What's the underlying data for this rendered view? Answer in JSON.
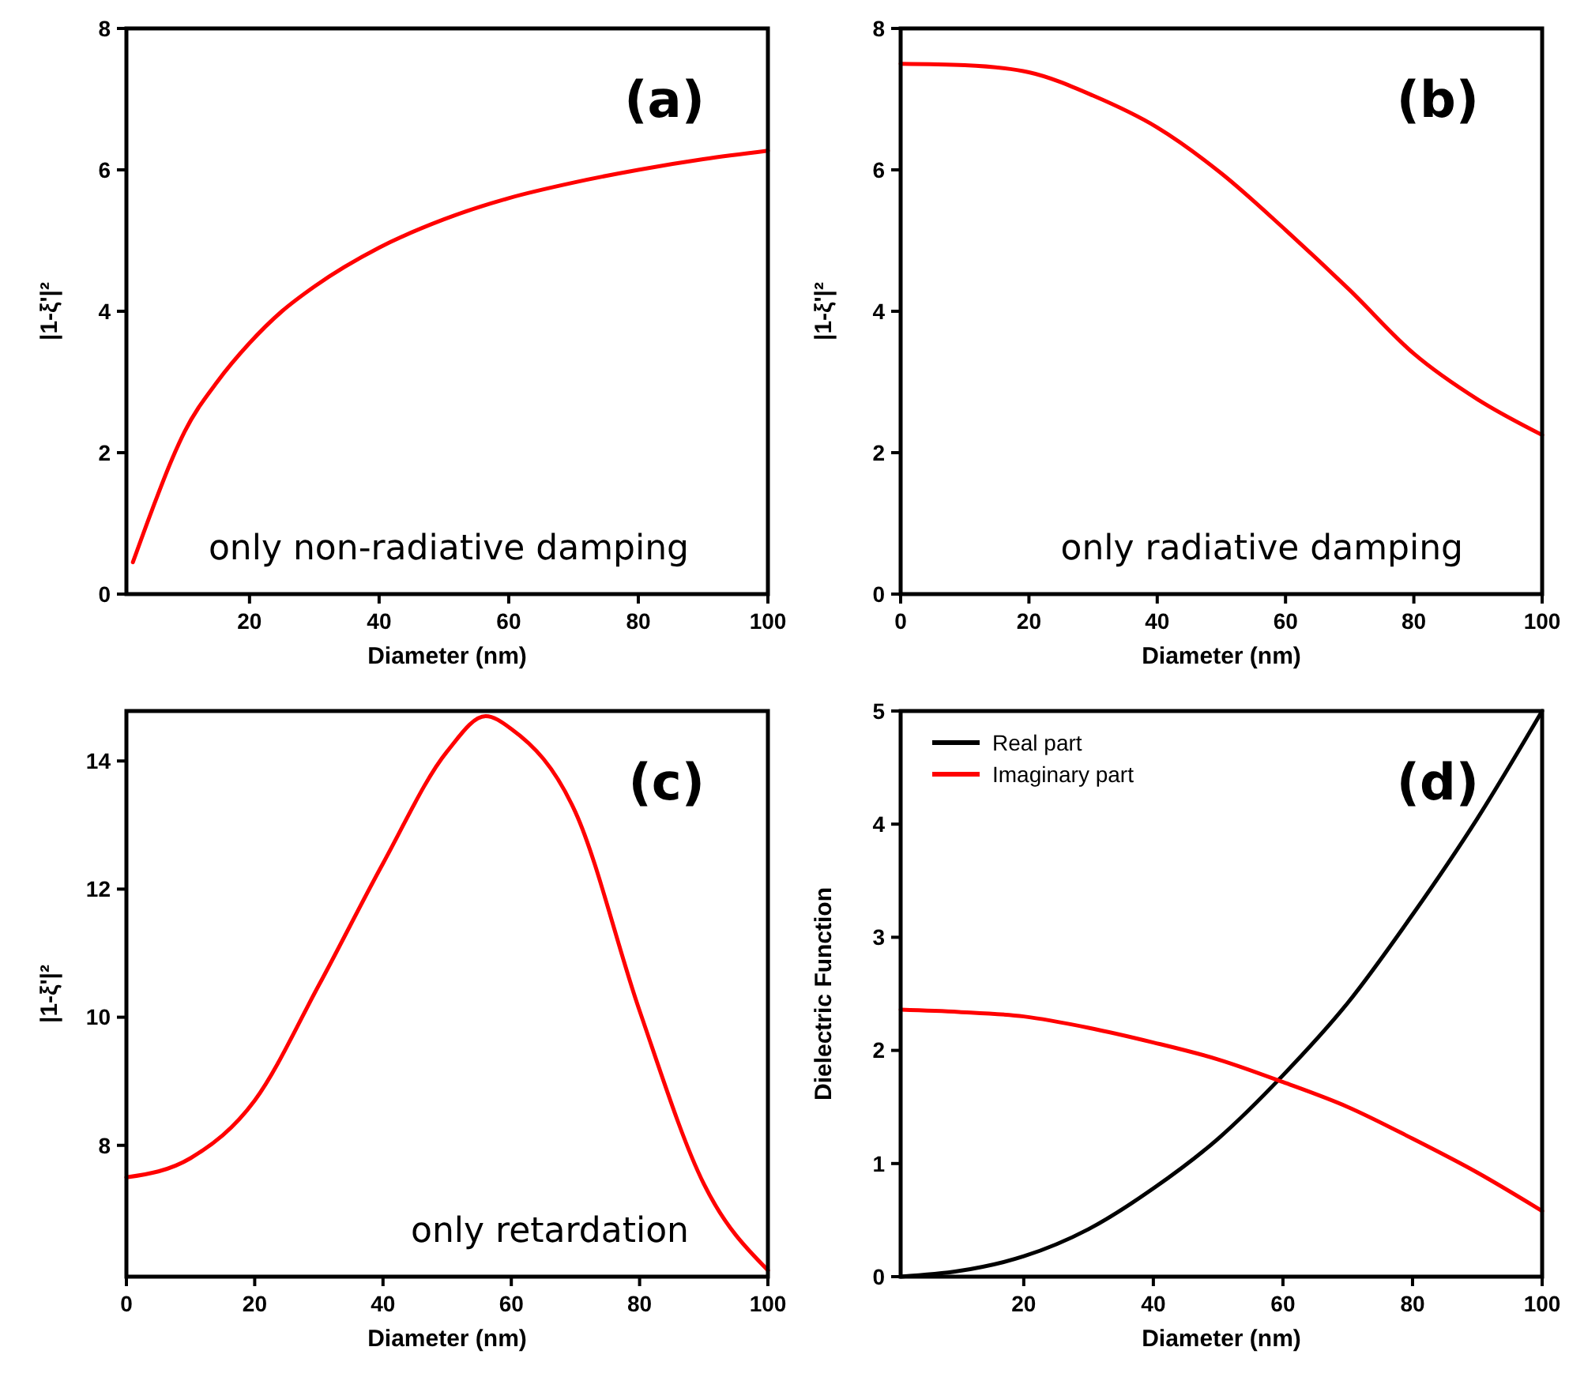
{
  "chart_data": [
    {
      "type": "line",
      "xlabel": "Diameter (nm)",
      "ylabel": "|1-ξ'|²",
      "xlim": [
        1,
        100
      ],
      "ylim": [
        0,
        8
      ],
      "xticks": [
        20,
        40,
        60,
        80,
        100
      ],
      "yticks": [
        0,
        2,
        4,
        6,
        8
      ],
      "annotations": [
        "(a)",
        "only non-radiative damping"
      ],
      "x": [
        2,
        5,
        8,
        10,
        15,
        20,
        25,
        30,
        40,
        50,
        60,
        70,
        80,
        90,
        100
      ],
      "series": [
        {
          "color": "#ff0000",
          "values": [
            0.45,
            1.2,
            1.9,
            2.3,
            3.0,
            3.55,
            4.0,
            4.35,
            4.9,
            5.3,
            5.6,
            5.82,
            6.0,
            6.15,
            6.27
          ]
        }
      ]
    },
    {
      "type": "line",
      "xlabel": "Diameter (nm)",
      "ylabel": "|1-ξ'|²",
      "xlim": [
        0,
        100
      ],
      "ylim": [
        0,
        8
      ],
      "xticks": [
        0,
        20,
        40,
        60,
        80,
        100
      ],
      "yticks": [
        0,
        2,
        4,
        6,
        8
      ],
      "annotations": [
        "(b)",
        "only radiative damping"
      ],
      "x": [
        0,
        10,
        20,
        30,
        40,
        50,
        60,
        70,
        80,
        90,
        100
      ],
      "series": [
        {
          "color": "#ff0000",
          "values": [
            7.5,
            7.48,
            7.38,
            7.05,
            6.6,
            5.95,
            5.15,
            4.3,
            3.4,
            2.75,
            2.25
          ]
        }
      ]
    },
    {
      "type": "line",
      "xlabel": "Diameter (nm)",
      "ylabel": "|1-ξ'|²",
      "xlim": [
        0,
        100
      ],
      "ylim": [
        5.95,
        14.78
      ],
      "xticks": [
        0,
        20,
        40,
        60,
        80,
        100
      ],
      "yticks": [
        8,
        10,
        12,
        14
      ],
      "annotations": [
        "(c)",
        "only retardation"
      ],
      "x": [
        0,
        10,
        20,
        30,
        40,
        50,
        56,
        60,
        70,
        80,
        90,
        100
      ],
      "series": [
        {
          "color": "#ff0000",
          "values": [
            7.5,
            7.8,
            8.7,
            10.5,
            12.4,
            14.15,
            14.7,
            14.5,
            13.2,
            10.1,
            7.4,
            6.05
          ]
        }
      ]
    },
    {
      "type": "line",
      "xlabel": "Diameter (nm)",
      "ylabel": "Dielectric Function",
      "xlim": [
        1,
        100
      ],
      "ylim": [
        0,
        5
      ],
      "xticks": [
        20,
        40,
        60,
        80,
        100
      ],
      "yticks": [
        0,
        1,
        2,
        3,
        4,
        5
      ],
      "annotations": [
        "(d)"
      ],
      "legend": "top left",
      "x": [
        1,
        10,
        20,
        30,
        40,
        50,
        60,
        70,
        80,
        90,
        100
      ],
      "series": [
        {
          "name": "Real part",
          "color": "#000000",
          "values": [
            0,
            0.05,
            0.18,
            0.42,
            0.78,
            1.22,
            1.78,
            2.42,
            3.2,
            4.05,
            5.0
          ]
        },
        {
          "name": "Imaginary part",
          "color": "#ff0000",
          "values": [
            2.36,
            2.34,
            2.3,
            2.2,
            2.07,
            1.92,
            1.72,
            1.5,
            1.22,
            0.92,
            0.58
          ]
        }
      ]
    }
  ]
}
